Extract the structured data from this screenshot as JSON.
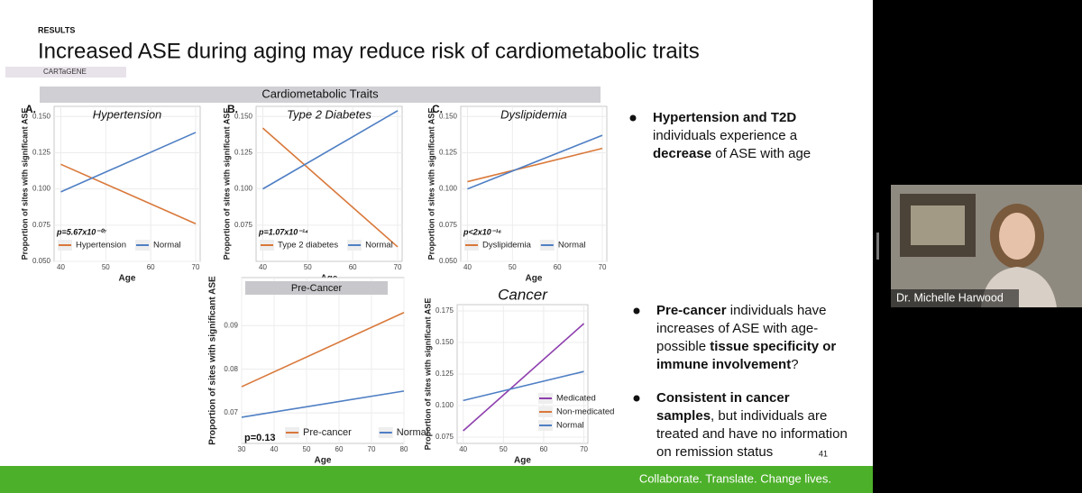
{
  "slide": {
    "section": "RESULTS",
    "title": "Increased ASE during aging may reduce risk of cardiometabolic traits",
    "tag": "CARTaGENE",
    "banner": "Cardiometabolic Traits",
    "bullets": [
      {
        "lines": [
          [
            {
              "text": "Hypertension and T2D",
              "bold": true
            }
          ],
          [
            {
              "text": "individuals experience a"
            }
          ],
          [
            {
              "text": "decrease",
              "bold": true
            },
            {
              "text": " of ASE with age"
            }
          ]
        ]
      },
      {
        "lines": [
          [
            {
              "text": "Pre-cancer",
              "bold": true
            },
            {
              "text": " individuals have"
            }
          ],
          [
            {
              "text": "increases of ASE with age-"
            }
          ],
          [
            {
              "text": "possible "
            },
            {
              "text": "tissue specificity or",
              "bold": true
            }
          ],
          [
            {
              "text": "immune involvement",
              "bold": true
            },
            {
              "text": "?"
            }
          ]
        ]
      },
      {
        "lines": [
          [
            {
              "text": "Consistent in cancer",
              "bold": true
            }
          ],
          [
            {
              "text": "samples",
              "bold": true
            },
            {
              "text": ", but individuals are"
            }
          ],
          [
            {
              "text": "treated and have no information"
            }
          ],
          [
            {
              "text": "on remission status"
            }
          ]
        ]
      }
    ],
    "page_number": "41",
    "footer": "Collaborate. Translate. Change lives."
  },
  "video": {
    "participant": "Dr. Michelle Harwood"
  },
  "charts": [
    {
      "type": "line",
      "panel": "A.",
      "title": "Hypertension",
      "xlabel": "Age",
      "ylabel": "Proportion of sites with significant ASE",
      "xlim": [
        38.5,
        71
      ],
      "xticks": [
        40,
        50,
        60,
        70
      ],
      "ylim": [
        0.05,
        0.157
      ],
      "yticks": [
        {
          "value": 0.05,
          "label": "0.050"
        },
        0.075,
        {
          "value": 0.1,
          "label": "0.100"
        },
        0.125,
        {
          "value": 0.15,
          "label": "0.150"
        }
      ],
      "annotation": "p=5.67x10⁻⁰⁷",
      "legend": "inside-bottom",
      "series": [
        {
          "name": "Hypertension",
          "color": "#d9783a",
          "x": [
            40,
            70
          ],
          "values": [
            0.117,
            0.076
          ]
        },
        {
          "name": "Normal",
          "color": "#4f7fc4",
          "x": [
            40,
            70
          ],
          "values": [
            0.098,
            0.139
          ]
        }
      ]
    },
    {
      "type": "line",
      "panel": "B.",
      "title": "Type 2 Diabetes",
      "xlabel": "Age",
      "ylabel": "Proportion of sites with significant ASE",
      "xlim": [
        38.5,
        71
      ],
      "xticks": [
        40,
        50,
        60,
        70
      ],
      "ylim": [
        0.05,
        0.157
      ],
      "yticks": [
        0.075,
        {
          "value": 0.1,
          "label": "0.100"
        },
        0.125,
        {
          "value": 0.15,
          "label": "0.150"
        }
      ],
      "annotation": "p=1.07x10⁻¹⁴",
      "legend": "inside-bottom",
      "series": [
        {
          "name": "Type 2 diabetes",
          "color": "#d9783a",
          "x": [
            40,
            70
          ],
          "values": [
            0.142,
            0.06
          ]
        },
        {
          "name": "Normal",
          "color": "#4f7fc4",
          "x": [
            40,
            70
          ],
          "values": [
            0.1,
            0.154
          ]
        }
      ]
    },
    {
      "type": "line",
      "panel": "C.",
      "title": "Dyslipidemia",
      "xlabel": "Age",
      "ylabel": "Proportion of sites with significant ASE",
      "xlim": [
        38.5,
        71
      ],
      "xticks": [
        40,
        50,
        60,
        70
      ],
      "ylim": [
        0.05,
        0.157
      ],
      "yticks": [
        {
          "value": 0.05,
          "label": "0.050"
        },
        0.075,
        {
          "value": 0.1,
          "label": "0.100"
        },
        0.125,
        {
          "value": 0.15,
          "label": "0.150"
        }
      ],
      "annotation": "p<2x10⁻¹⁶",
      "legend": "inside-bottom",
      "series": [
        {
          "name": "Dyslipidemia",
          "color": "#d9783a",
          "x": [
            40,
            70
          ],
          "values": [
            0.105,
            0.128
          ]
        },
        {
          "name": "Normal",
          "color": "#4f7fc4",
          "x": [
            40,
            70
          ],
          "values": [
            0.1,
            0.137
          ]
        }
      ]
    },
    {
      "type": "line",
      "banner": "Pre-Cancer",
      "xlabel": "Age",
      "ylabel": "Proportion of sites with significant ASE",
      "xlim": [
        30,
        80
      ],
      "xticks": [
        30,
        40,
        50,
        60,
        70,
        80
      ],
      "ylim": [
        0.063,
        0.101
      ],
      "yticks": [
        0.07,
        0.08,
        0.09
      ],
      "annotation": "p=0.13",
      "legend": "bottom-row",
      "series": [
        {
          "name": "Pre-cancer",
          "color": "#d9783a",
          "x": [
            30,
            80
          ],
          "values": [
            0.076,
            0.093
          ]
        },
        {
          "name": "Normal",
          "color": "#4f7fc4",
          "x": [
            30,
            80
          ],
          "values": [
            0.069,
            0.075
          ]
        }
      ]
    },
    {
      "type": "line",
      "title": "Cancer",
      "xlabel": "Age",
      "ylabel": "Proportion of sites with significant ASE",
      "xlim": [
        38.5,
        71
      ],
      "xticks": [
        40,
        50,
        60,
        70
      ],
      "ylim": [
        0.07,
        0.18
      ],
      "yticks": [
        0.075,
        {
          "value": 0.1,
          "label": "0.100"
        },
        0.125,
        {
          "value": 0.15,
          "label": "0.150"
        },
        0.175
      ],
      "legend": "inside-right",
      "series": [
        {
          "name": "Medicated",
          "color": "#8e3fae",
          "x": [
            40,
            70
          ],
          "values": [
            0.08,
            0.165
          ]
        },
        {
          "name": "Non-medicated",
          "color": "#d9783a",
          "x": [
            40,
            70
          ],
          "values": [
            null,
            null
          ]
        },
        {
          "name": "Normal",
          "color": "#4f7fc4",
          "x": [
            40,
            70
          ],
          "values": [
            0.104,
            0.127
          ]
        }
      ]
    }
  ]
}
